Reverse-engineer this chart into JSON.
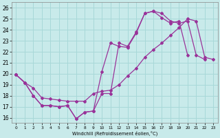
{
  "xlabel": "Windchill (Refroidissement éolien,°C)",
  "bg_color": "#c8eaea",
  "grid_color": "#a8d8d8",
  "line_color": "#993399",
  "xlim": [
    -0.5,
    23.5
  ],
  "ylim": [
    15.5,
    26.5
  ],
  "xticks": [
    0,
    1,
    2,
    3,
    4,
    5,
    6,
    7,
    8,
    9,
    10,
    11,
    12,
    13,
    14,
    15,
    16,
    17,
    18,
    19,
    20,
    21,
    22,
    23
  ],
  "yticks": [
    16,
    17,
    18,
    19,
    20,
    21,
    22,
    23,
    24,
    25,
    26
  ],
  "series": [
    {
      "x": [
        0,
        1,
        2,
        3,
        4,
        5,
        6,
        7,
        8,
        9,
        10,
        11,
        12,
        13,
        14,
        15,
        16,
        17,
        18,
        19,
        20,
        21,
        22,
        23
      ],
      "y": [
        19.9,
        19.2,
        18.7,
        17.8,
        17.7,
        17.6,
        17.5,
        17.5,
        17.5,
        18.2,
        18.4,
        18.5,
        19.0,
        19.8,
        20.5,
        21.5,
        22.2,
        22.8,
        23.5,
        24.2,
        25.0,
        24.8,
        21.5,
        21.3
      ]
    },
    {
      "x": [
        0,
        1,
        2,
        3,
        4,
        5,
        6,
        7,
        8,
        9,
        10,
        11,
        12,
        13,
        14,
        15,
        16,
        17,
        18,
        19,
        20,
        21,
        22,
        23
      ],
      "y": [
        19.9,
        19.2,
        18.0,
        17.1,
        17.1,
        17.0,
        17.1,
        15.9,
        16.5,
        16.6,
        18.2,
        18.2,
        22.8,
        22.5,
        23.8,
        25.5,
        25.7,
        25.5,
        24.8,
        24.6,
        24.8,
        21.7,
        21.3,
        null
      ]
    },
    {
      "x": [
        0,
        1,
        2,
        3,
        4,
        5,
        6,
        7,
        8,
        9,
        10,
        11,
        12,
        13,
        14,
        15,
        16,
        17,
        18,
        19,
        20,
        21,
        22,
        23
      ],
      "y": [
        19.9,
        19.2,
        18.0,
        17.1,
        17.1,
        17.0,
        17.1,
        15.9,
        16.5,
        16.6,
        20.2,
        22.8,
        22.5,
        22.4,
        23.7,
        25.5,
        25.7,
        25.1,
        24.6,
        24.8,
        21.7,
        null,
        null,
        null
      ]
    }
  ]
}
